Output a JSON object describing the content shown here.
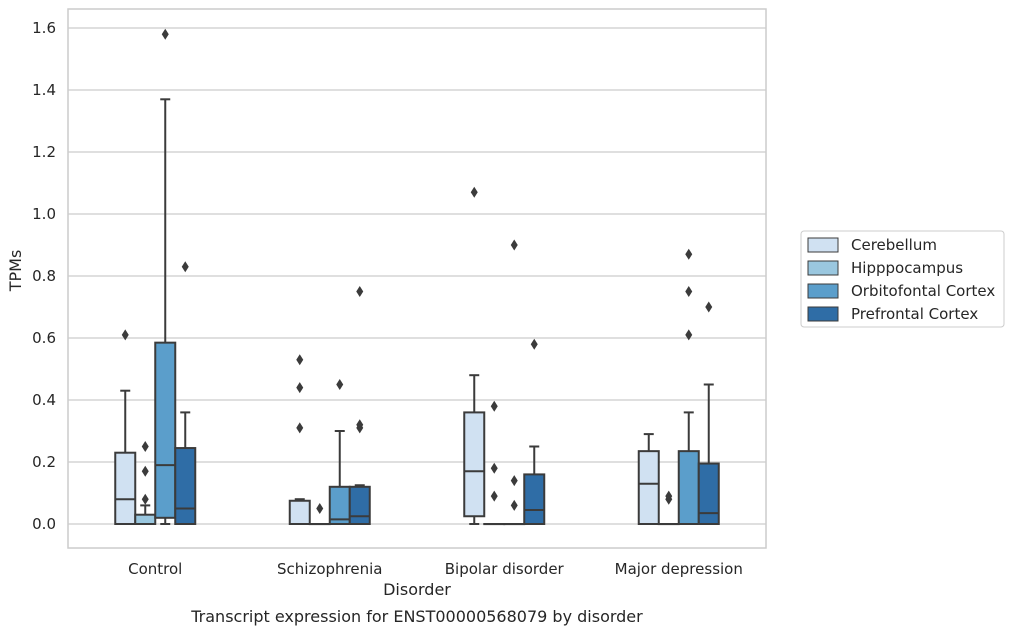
{
  "chart_data": {
    "type": "box",
    "title": "",
    "caption": "Transcript expression for ENST00000568079 by disorder",
    "xlabel": "Disorder",
    "ylabel": "TPMs",
    "ylim": [
      -0.078,
      1.66
    ],
    "yticks": [
      "0.0",
      "0.2",
      "0.4",
      "0.6",
      "0.8",
      "1.0",
      "1.2",
      "1.4",
      "1.6"
    ],
    "grid": "horizontal",
    "legend_position": "right",
    "categories": [
      "Control",
      "Schizophrenia",
      "Bipolar disorder",
      "Major depression"
    ],
    "series": [
      {
        "name": "Cerebellum",
        "color": "#d0e1f2",
        "boxes": [
          {
            "q1": 0,
            "median": 0.08,
            "q3": 0.23,
            "whislo": 0,
            "whishi": 0.43,
            "fliers": [
              0.61
            ]
          },
          {
            "q1": 0,
            "median": 0,
            "q3": 0.075,
            "whislo": 0,
            "whishi": 0.08,
            "fliers": [
              0.31,
              0.44,
              0.53
            ]
          },
          {
            "q1": 0.025,
            "median": 0.17,
            "q3": 0.36,
            "whislo": 0,
            "whishi": 0.48,
            "fliers": [
              1.07
            ]
          },
          {
            "q1": 0,
            "median": 0.13,
            "q3": 0.235,
            "whislo": 0,
            "whishi": 0.29,
            "fliers": []
          }
        ]
      },
      {
        "name": "Hipppocampus",
        "color": "#9ac7df",
        "boxes": [
          {
            "q1": 0,
            "median": 0,
            "q3": 0.03,
            "whislo": 0,
            "whishi": 0.06,
            "fliers": [
              0.08,
              0.17,
              0.25
            ]
          },
          {
            "q1": 0,
            "median": 0,
            "q3": 0,
            "whislo": 0,
            "whishi": 0,
            "fliers": [
              0.05
            ]
          },
          {
            "q1": 0,
            "median": 0,
            "q3": 0,
            "whislo": 0,
            "whishi": 0,
            "fliers": [
              0.09,
              0.18,
              0.38
            ]
          },
          {
            "q1": 0,
            "median": 0,
            "q3": 0,
            "whislo": 0,
            "whishi": 0,
            "fliers": [
              0.08,
              0.09
            ]
          }
        ]
      },
      {
        "name": "Orbitofontal Cortex",
        "color": "#5b9ecb",
        "boxes": [
          {
            "q1": 0.02,
            "median": 0.19,
            "q3": 0.585,
            "whislo": 0,
            "whishi": 1.37,
            "fliers": [
              1.58
            ]
          },
          {
            "q1": 0,
            "median": 0.015,
            "q3": 0.12,
            "whislo": 0,
            "whishi": 0.3,
            "fliers": [
              0.45
            ]
          },
          {
            "q1": 0,
            "median": 0,
            "q3": 0,
            "whislo": 0,
            "whishi": 0,
            "fliers": [
              0.06,
              0.14,
              0.9
            ]
          },
          {
            "q1": 0,
            "median": 0,
            "q3": 0.235,
            "whislo": 0,
            "whishi": 0.36,
            "fliers": [
              0.61,
              0.75,
              0.87
            ]
          }
        ]
      },
      {
        "name": "Prefrontal Cortex",
        "color": "#2f6da6",
        "boxes": [
          {
            "q1": 0,
            "median": 0.05,
            "q3": 0.245,
            "whislo": 0,
            "whishi": 0.36,
            "fliers": [
              0.83
            ]
          },
          {
            "q1": 0,
            "median": 0.025,
            "q3": 0.12,
            "whislo": 0,
            "whishi": 0.125,
            "fliers": [
              0.31,
              0.32,
              0.75
            ]
          },
          {
            "q1": 0,
            "median": 0.045,
            "q3": 0.16,
            "whislo": 0,
            "whishi": 0.25,
            "fliers": [
              0.58
            ]
          },
          {
            "q1": 0,
            "median": 0.035,
            "q3": 0.195,
            "whislo": 0,
            "whishi": 0.45,
            "fliers": [
              0.7
            ]
          }
        ]
      }
    ]
  }
}
